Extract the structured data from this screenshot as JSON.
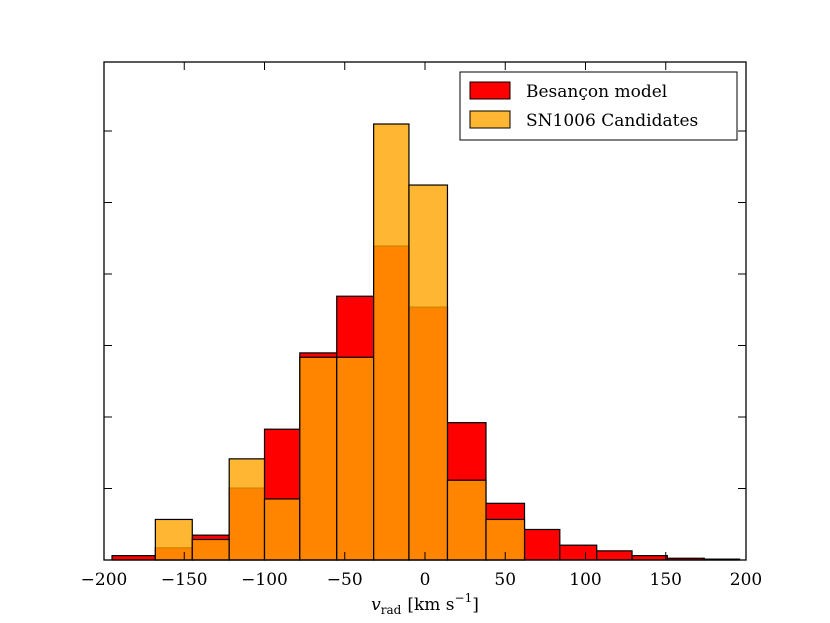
{
  "chart_data": {
    "type": "bar",
    "title": "",
    "xlabel_var": "v",
    "xlabel_sub": "rad",
    "xlabel_unit": "[km s",
    "xlabel_exp": "−1",
    "xlabel_close": "]",
    "ylabel": "",
    "xlim": [
      -200,
      200
    ],
    "ylim": [
      0,
      1
    ],
    "xticks": [
      -200,
      -150,
      -100,
      -50,
      0,
      50,
      100,
      150,
      200
    ],
    "xtick_labels": [
      "−200",
      "−150",
      "−100",
      "−50",
      "0",
      "50",
      "100",
      "150",
      "200"
    ],
    "grid": false,
    "legend_position": "top-right",
    "bins": [
      [
        -195,
        -168
      ],
      [
        -168,
        -145
      ],
      [
        -145,
        -122
      ],
      [
        -122,
        -100
      ],
      [
        -100,
        -78
      ],
      [
        -78,
        -55
      ],
      [
        -55,
        -32
      ],
      [
        -32,
        -10
      ],
      [
        -10,
        14
      ],
      [
        14,
        38
      ],
      [
        38,
        62
      ],
      [
        62,
        84
      ],
      [
        84,
        107
      ],
      [
        107,
        129
      ],
      [
        129,
        151
      ],
      [
        151,
        174
      ],
      [
        174,
        196
      ]
    ],
    "series": [
      {
        "name": "Besançon model",
        "color": "#ff0000",
        "values": [
          0.01,
          0.028,
          0.057,
          0.165,
          0.3,
          0.475,
          0.605,
          0.72,
          0.58,
          0.315,
          0.13,
          0.07,
          0.034,
          0.021,
          0.01,
          0.004,
          0.002
        ]
      },
      {
        "name": "SN1006 Candidates",
        "color": "#ffa500",
        "opacity": 0.8,
        "values": [
          0,
          0.093,
          0.047,
          0.232,
          0.14,
          0.465,
          0.465,
          1.0,
          0.86,
          0.183,
          0.093,
          0,
          0,
          0,
          0,
          0,
          0
        ]
      }
    ]
  }
}
